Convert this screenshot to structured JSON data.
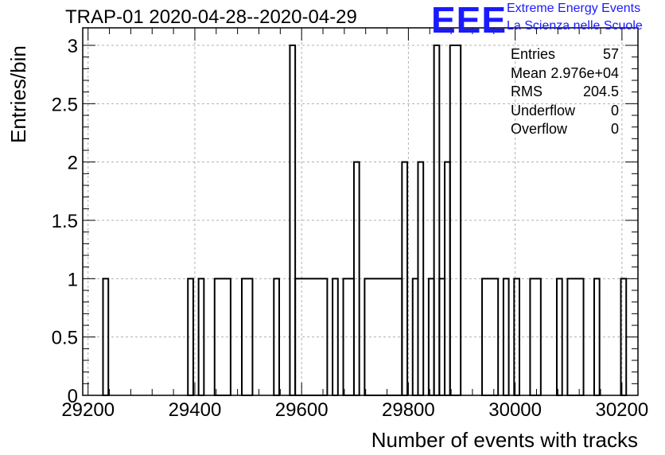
{
  "chart_data": {
    "type": "histogram",
    "title": "TRAP-01 2020-04-28--2020-04-29",
    "xlabel": "Number of events with tracks",
    "ylabel": "Entries/bin",
    "xlim": [
      29190,
      30230
    ],
    "ylim": [
      0,
      3.15
    ],
    "x_ticks": [
      "29200",
      "29400",
      "29600",
      "29800",
      "30000",
      "30200"
    ],
    "y_ticks": [
      "0",
      "0.5",
      "1",
      "1.5",
      "2",
      "2.5",
      "3"
    ],
    "grid": true,
    "bins": [
      {
        "x0": 29228,
        "x1": 29238,
        "y": 1
      },
      {
        "x0": 29387,
        "x1": 29397,
        "y": 1
      },
      {
        "x0": 29407,
        "x1": 29417,
        "y": 1
      },
      {
        "x0": 29437,
        "x1": 29467,
        "y": 1
      },
      {
        "x0": 29488,
        "x1": 29508,
        "y": 1
      },
      {
        "x0": 29548,
        "x1": 29558,
        "y": 1
      },
      {
        "x0": 29578,
        "x1": 29588,
        "y": 3
      },
      {
        "x0": 29588,
        "x1": 29648,
        "y": 1
      },
      {
        "x0": 29658,
        "x1": 29668,
        "y": 1
      },
      {
        "x0": 29678,
        "x1": 29698,
        "y": 1
      },
      {
        "x0": 29698,
        "x1": 29708,
        "y": 2
      },
      {
        "x0": 29718,
        "x1": 29788,
        "y": 1
      },
      {
        "x0": 29788,
        "x1": 29798,
        "y": 2
      },
      {
        "x0": 29808,
        "x1": 29818,
        "y": 1
      },
      {
        "x0": 29818,
        "x1": 29828,
        "y": 2
      },
      {
        "x0": 29838,
        "x1": 29848,
        "y": 1
      },
      {
        "x0": 29848,
        "x1": 29858,
        "y": 3
      },
      {
        "x0": 29858,
        "x1": 29868,
        "y": 1
      },
      {
        "x0": 29868,
        "x1": 29878,
        "y": 2
      },
      {
        "x0": 29878,
        "x1": 29898,
        "y": 3
      },
      {
        "x0": 29938,
        "x1": 29968,
        "y": 1
      },
      {
        "x0": 29978,
        "x1": 29988,
        "y": 1
      },
      {
        "x0": 29998,
        "x1": 30008,
        "y": 1
      },
      {
        "x0": 30028,
        "x1": 30048,
        "y": 1
      },
      {
        "x0": 30078,
        "x1": 30088,
        "y": 1
      },
      {
        "x0": 30098,
        "x1": 30128,
        "y": 1
      },
      {
        "x0": 30148,
        "x1": 30158,
        "y": 1
      },
      {
        "x0": 30198,
        "x1": 30208,
        "y": 1
      }
    ],
    "line_color": "#000000",
    "grid_color": "#b0b0b0"
  },
  "logo": {
    "text": "EEE",
    "line1": "Extreme Energy Events",
    "line2": "La Scienza nelle Scuole",
    "color": "#1a1aff"
  },
  "stats": [
    {
      "key": "Entries",
      "value": "57"
    },
    {
      "key": "Mean",
      "value": "2.976e+04"
    },
    {
      "key": "RMS",
      "value": "204.5"
    },
    {
      "key": "Underflow",
      "value": "0"
    },
    {
      "key": "Overflow",
      "value": "0"
    }
  ]
}
